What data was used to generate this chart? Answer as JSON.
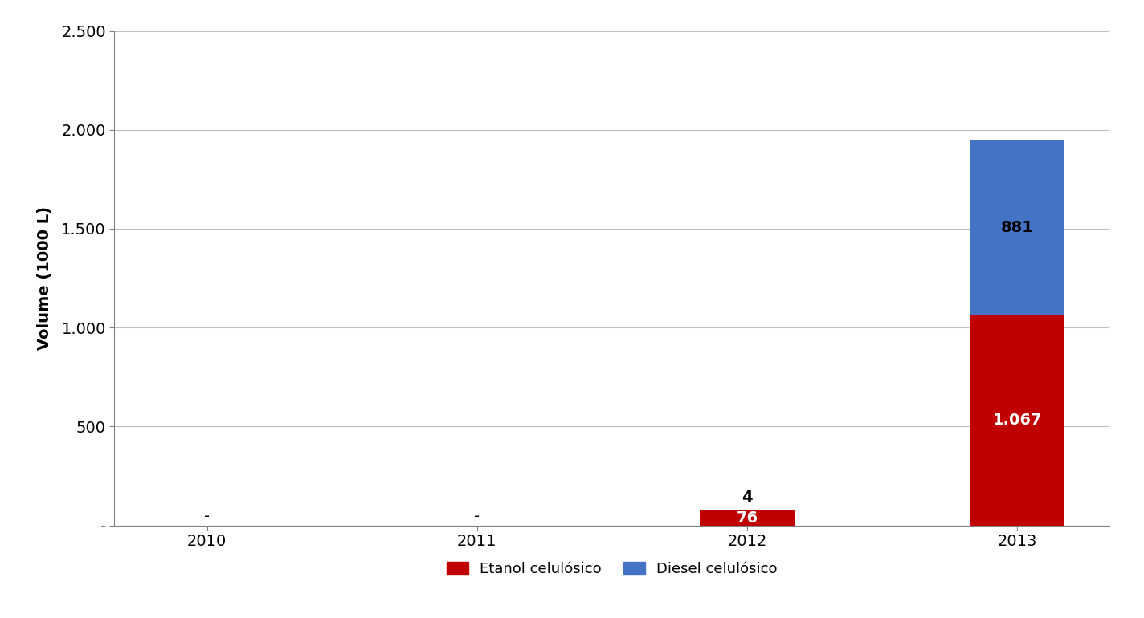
{
  "categories": [
    "2010",
    "2011",
    "2012",
    "2013"
  ],
  "etanol": [
    0,
    0,
    76,
    1067
  ],
  "diesel": [
    0,
    0,
    4,
    881
  ],
  "etanol_color": "#C00000",
  "diesel_color": "#4472C4",
  "ylabel": "Volume (1000 L)",
  "ylim_min": 0,
  "ylim_max": 2500,
  "yticks": [
    0,
    500,
    1000,
    1500,
    2000,
    2500
  ],
  "ytick_labels": [
    "-",
    "500",
    "1.000",
    "1.500",
    "2.000",
    "2.500"
  ],
  "legend_labels": [
    "Etanol celulósico",
    "Diesel celulósico"
  ],
  "bar_width": 0.35,
  "background_color": "#FFFFFF",
  "grid_color": "#BFBFBF",
  "label_etanol_2012": "76",
  "label_diesel_2012": "4",
  "label_etanol_2013": "1.067",
  "label_diesel_2013": "881",
  "label_2010": "-",
  "label_2011": "-",
  "spine_color": "#808080",
  "tick_label_fontsize": 14,
  "ylabel_fontsize": 14,
  "annotation_fontsize": 14,
  "legend_fontsize": 13
}
